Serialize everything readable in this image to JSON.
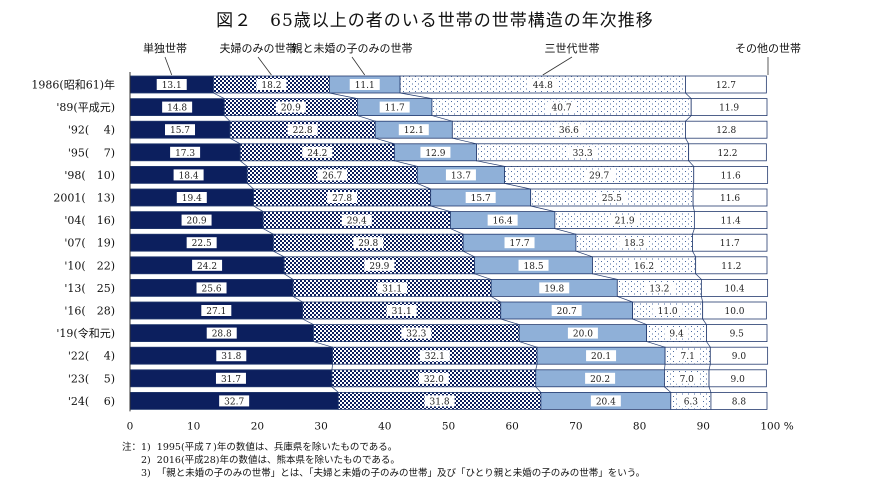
{
  "chart_data": {
    "type": "bar",
    "orientation": "horizontal-stacked-100",
    "title": "図２　65歳以上の者のいる世帯の世帯構造の年次推移",
    "categories": [
      "1986(昭和61)年",
      "'89(平成元)",
      "'92(　 4)",
      "'95(　 7)",
      "'98(　10)",
      "2001(　13)",
      "'04(　16)",
      "'07(　19)",
      "'10(　22)",
      "'13(　25)",
      "'16(　28)",
      "'19(令和元)",
      "'22(　 4)",
      "'23(　 5)",
      "'24(　 6)"
    ],
    "series": [
      {
        "name": "単独世帯",
        "color": "#0c1f5e",
        "pattern": "solid",
        "values": [
          13.1,
          14.8,
          15.7,
          17.3,
          18.4,
          19.4,
          20.9,
          22.5,
          24.2,
          25.6,
          27.1,
          28.8,
          31.8,
          31.7,
          32.7
        ]
      },
      {
        "name": "夫婦のみの世帯",
        "color": "#0c1f5e",
        "pattern": "checker",
        "values": [
          18.2,
          20.9,
          22.8,
          24.2,
          26.7,
          27.8,
          29.4,
          29.8,
          29.9,
          31.1,
          31.1,
          32.3,
          32.1,
          32.0,
          31.8
        ]
      },
      {
        "name": "親と未婚の子のみの世帯",
        "color": "#8fb0d8",
        "pattern": "solid",
        "values": [
          11.1,
          11.7,
          12.1,
          12.9,
          13.7,
          15.7,
          16.4,
          17.7,
          18.5,
          19.8,
          20.7,
          20.0,
          20.1,
          20.2,
          20.4
        ]
      },
      {
        "name": "三世代世帯",
        "color": "#4a6aa0",
        "pattern": "dots",
        "values": [
          44.8,
          40.7,
          36.6,
          33.3,
          29.7,
          25.5,
          21.9,
          18.3,
          16.2,
          13.2,
          11.0,
          9.4,
          7.1,
          7.0,
          6.3
        ]
      },
      {
        "name": "その他の世帯",
        "color": "#ffffff",
        "pattern": "solid",
        "values": [
          12.7,
          11.9,
          12.8,
          12.2,
          11.6,
          11.6,
          11.4,
          11.7,
          11.2,
          10.4,
          10.0,
          9.5,
          9.0,
          9.0,
          8.8
        ]
      }
    ],
    "xlim": [
      0,
      100
    ],
    "xticks": [
      "0",
      "10",
      "20",
      "30",
      "40",
      "50",
      "60",
      "70",
      "80",
      "90",
      "100 %"
    ],
    "legend": "top",
    "grid": false
  },
  "notes": [
    "注：1)  1995(平成７)年の数値は、兵庫県を除いたものである。",
    "　　2)  2016(平成28)年の数値は、熊本県を除いたものである。",
    "　　3)  「親と未婚の子のみの世帯」とは、「夫婦と未婚の子のみの世帯」及び「ひとり親と未婚の子のみの世帯」をいう。"
  ]
}
